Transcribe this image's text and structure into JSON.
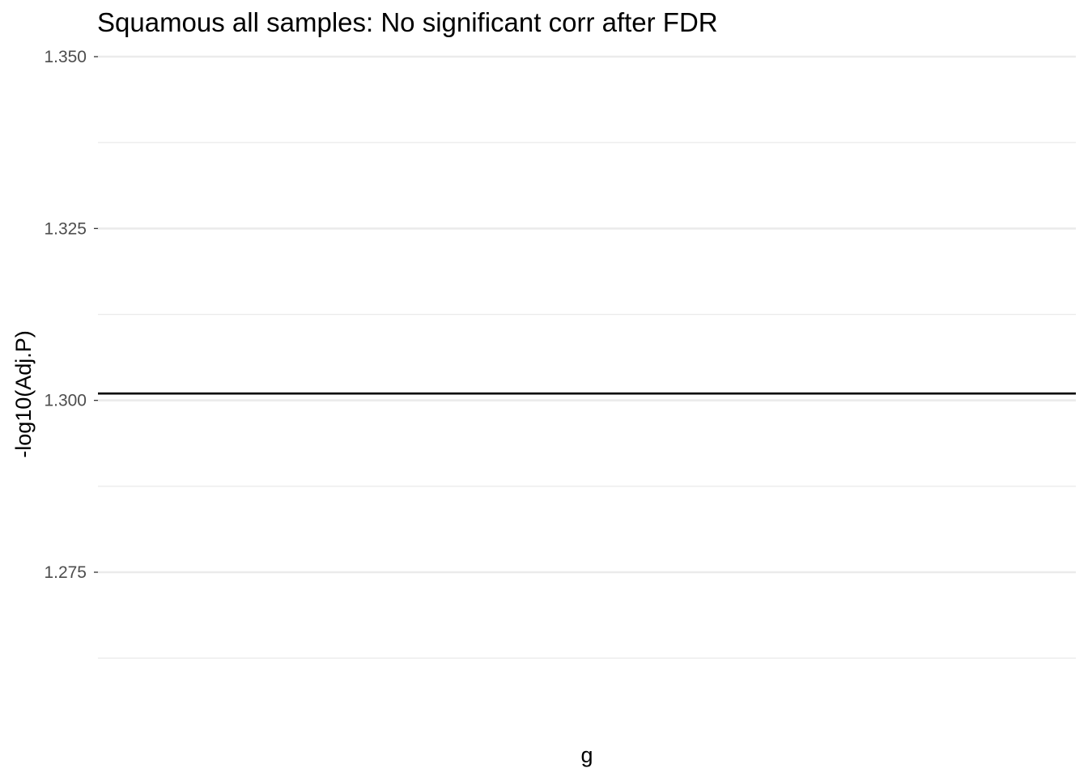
{
  "chart_data": {
    "type": "line",
    "title": "Squamous all samples: No significant corr after FDR",
    "xlabel": "g",
    "ylabel": "-log10(Adj.P)",
    "ylim": [
      1.2551,
      1.35
    ],
    "y_ticks": [
      {
        "value": 1.35,
        "label": "1.350"
      },
      {
        "value": 1.325,
        "label": "1.325"
      },
      {
        "value": 1.3,
        "label": "1.300"
      },
      {
        "value": 1.275,
        "label": "1.275"
      }
    ],
    "y_minor_ticks": [
      1.3375,
      1.3125,
      1.2875,
      1.2625
    ],
    "reference_lines": [
      {
        "orientation": "horizontal",
        "y": 1.301,
        "color": "#000000"
      }
    ],
    "series": [],
    "grid": true,
    "legend": "none",
    "theme": "minimal"
  }
}
